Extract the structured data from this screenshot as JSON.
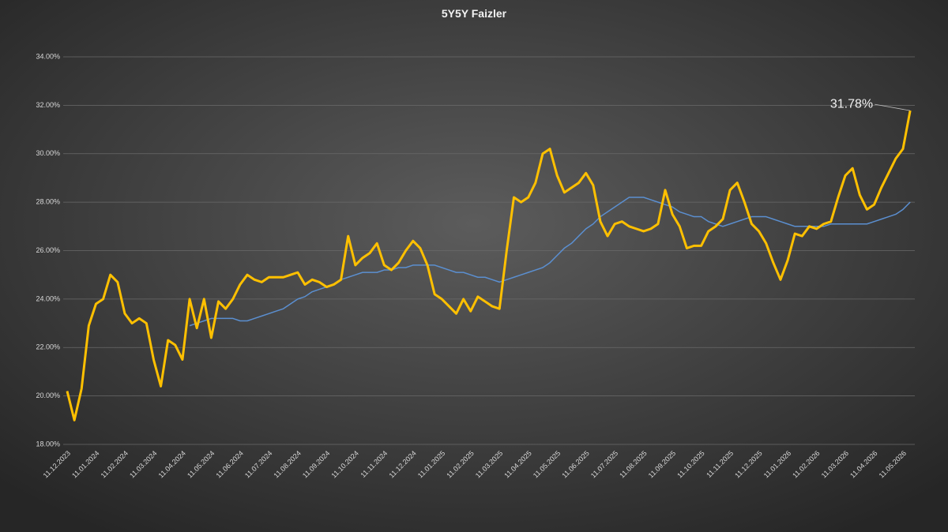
{
  "chart_data": {
    "type": "line",
    "title": "5Y5Y Faizler",
    "categories": [
      "11.12.2023",
      null,
      null,
      null,
      "11.01.2024",
      null,
      null,
      null,
      "11.02.2024",
      null,
      null,
      null,
      "11.03.2024",
      null,
      null,
      null,
      "11.04.2024",
      null,
      null,
      null,
      "11.05.2024",
      null,
      null,
      null,
      "11.06.2024",
      null,
      null,
      null,
      "11.07.2024",
      null,
      null,
      null,
      "11.08.2024",
      null,
      null,
      null,
      "11.09.2024",
      null,
      null,
      null,
      "11.10.2024",
      null,
      null,
      null,
      "11.11.2024",
      null,
      null,
      null,
      "11.12.2024",
      null,
      null,
      null,
      "11.01.2025",
      null,
      null,
      null,
      "11.02.2025",
      null,
      null,
      null,
      "11.03.2025",
      null,
      null,
      null,
      "11.04.2025",
      null,
      null,
      null,
      "11.05.2025",
      null,
      null,
      null,
      "11.06.2025",
      null,
      null,
      null,
      "11.07.2025",
      null,
      null,
      null,
      "11.08.2025",
      null,
      null,
      null,
      "11.09.2025",
      null,
      null,
      null,
      "11.10.2025",
      null,
      null,
      null,
      "11.11.2025",
      null,
      null,
      null,
      "11.12.2025",
      null,
      null,
      null,
      "11.01.2026",
      null,
      null,
      null,
      "11.02.2026",
      null,
      null,
      null,
      "11.03.2026",
      null,
      null,
      null,
      "11.04.2026",
      null,
      null,
      null,
      "11.05.2026",
      null
    ],
    "series": [
      {
        "color": "#ffc000",
        "values": [
          20.2,
          19.0,
          20.3,
          22.9,
          23.8,
          24.0,
          25.0,
          24.7,
          23.4,
          23.0,
          23.2,
          23.0,
          21.5,
          20.4,
          22.3,
          22.1,
          21.5,
          24.0,
          22.8,
          24.0,
          22.4,
          23.9,
          23.6,
          24.0,
          24.6,
          25.0,
          24.8,
          24.7,
          24.9,
          24.9,
          24.9,
          25.0,
          25.1,
          24.6,
          24.8,
          24.7,
          24.5,
          24.6,
          24.8,
          26.6,
          25.4,
          25.7,
          25.9,
          26.3,
          25.4,
          25.2,
          25.5,
          26.0,
          26.4,
          26.1,
          25.4,
          24.2,
          24.0,
          23.7,
          23.4,
          24.0,
          23.5,
          24.1,
          23.9,
          23.7,
          23.6,
          26.0,
          28.2,
          28.0,
          28.2,
          28.8,
          30.0,
          30.2,
          29.1,
          28.4,
          28.6,
          28.8,
          29.2,
          28.7,
          27.2,
          26.6,
          27.1,
          27.2,
          27.0,
          26.9,
          26.8,
          26.9,
          27.1,
          28.5,
          27.5,
          27.0,
          26.1,
          26.2,
          26.2,
          26.8,
          27.0,
          27.3,
          28.5,
          28.8,
          28.0,
          27.1,
          26.8,
          26.3,
          25.5,
          24.8,
          25.6,
          26.7,
          26.6,
          27.0,
          26.9,
          27.1,
          27.2,
          28.2,
          29.1,
          29.4,
          28.3,
          27.7,
          27.9,
          28.6,
          29.2,
          29.8,
          30.2,
          31.78
        ]
      },
      {
        "color": "#5b8fd0",
        "values": [
          null,
          null,
          null,
          null,
          null,
          null,
          null,
          null,
          null,
          null,
          null,
          null,
          null,
          null,
          null,
          null,
          null,
          22.9,
          23.0,
          23.1,
          23.2,
          23.2,
          23.2,
          23.2,
          23.1,
          23.1,
          23.2,
          23.3,
          23.4,
          23.5,
          23.6,
          23.8,
          24.0,
          24.1,
          24.3,
          24.4,
          24.5,
          24.6,
          24.8,
          24.9,
          25.0,
          25.1,
          25.1,
          25.1,
          25.2,
          25.2,
          25.3,
          25.3,
          25.4,
          25.4,
          25.4,
          25.4,
          25.3,
          25.2,
          25.1,
          25.1,
          25.0,
          24.9,
          24.9,
          24.8,
          24.7,
          24.8,
          24.9,
          25.0,
          25.1,
          25.2,
          25.3,
          25.5,
          25.8,
          26.1,
          26.3,
          26.6,
          26.9,
          27.1,
          27.4,
          27.6,
          27.8,
          28.0,
          28.2,
          28.2,
          28.2,
          28.1,
          28.0,
          27.9,
          27.8,
          27.6,
          27.5,
          27.4,
          27.4,
          27.2,
          27.1,
          27.0,
          27.1,
          27.2,
          27.3,
          27.4,
          27.4,
          27.4,
          27.3,
          27.2,
          27.1,
          27.0,
          27.0,
          27.0,
          27.0,
          27.0,
          27.1,
          27.1,
          27.1,
          27.1,
          27.1,
          27.1,
          27.2,
          27.3,
          27.4,
          27.5,
          27.7,
          28.0
        ]
      }
    ],
    "annotations": [
      {
        "text": "31.78%"
      }
    ],
    "ylim": [
      18,
      34
    ],
    "yticks": [
      {
        "value": 18,
        "label": "18.00%"
      },
      {
        "value": 20,
        "label": "20.00%"
      },
      {
        "value": 22,
        "label": "22.00%"
      },
      {
        "value": 24,
        "label": "24.00%"
      },
      {
        "value": 26,
        "label": "26.00%"
      },
      {
        "value": 28,
        "label": "28.00%"
      },
      {
        "value": 30,
        "label": "30.00%"
      },
      {
        "value": 32,
        "label": "32.00%"
      },
      {
        "value": 34,
        "label": "34.00%"
      }
    ],
    "grid": true
  }
}
